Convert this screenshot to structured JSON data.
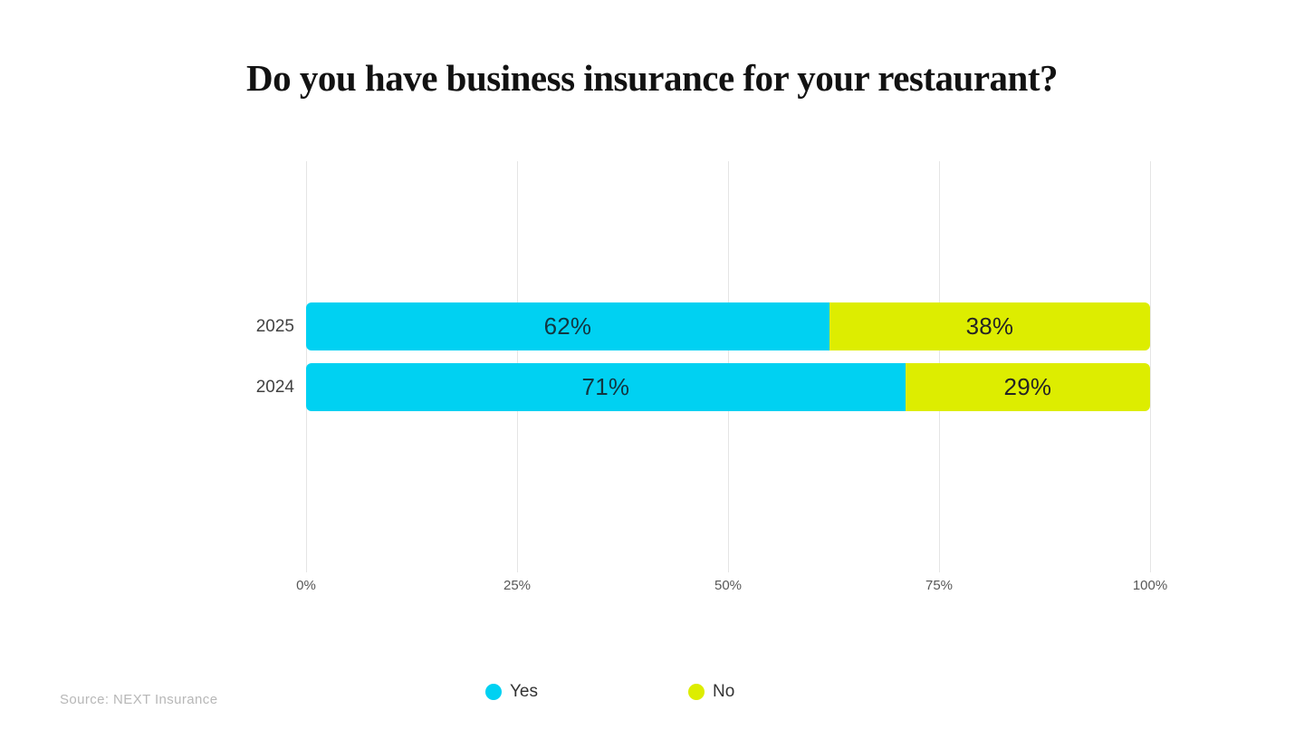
{
  "title": "Do you have business insurance for your restaurant?",
  "source_note": "Source: NEXT Insurance",
  "chart_data": {
    "type": "bar",
    "orientation": "horizontal",
    "stacked": true,
    "title": "Do you have business insurance for your restaurant?",
    "categories": [
      "2025",
      "2024"
    ],
    "series": [
      {
        "name": "Yes",
        "color": "#00d1f2",
        "label_color": "#123641",
        "values": [
          62,
          71
        ]
      },
      {
        "name": "No",
        "color": "#dded00",
        "label_color": "#242424",
        "values": [
          38,
          29
        ]
      }
    ],
    "value_suffix": "%",
    "x_tick_labels": [
      "0%",
      "25%",
      "50%",
      "75%",
      "100%"
    ],
    "xlim": [
      0,
      100
    ],
    "grid": "vertical-only",
    "legend_position": "bottom-center"
  }
}
